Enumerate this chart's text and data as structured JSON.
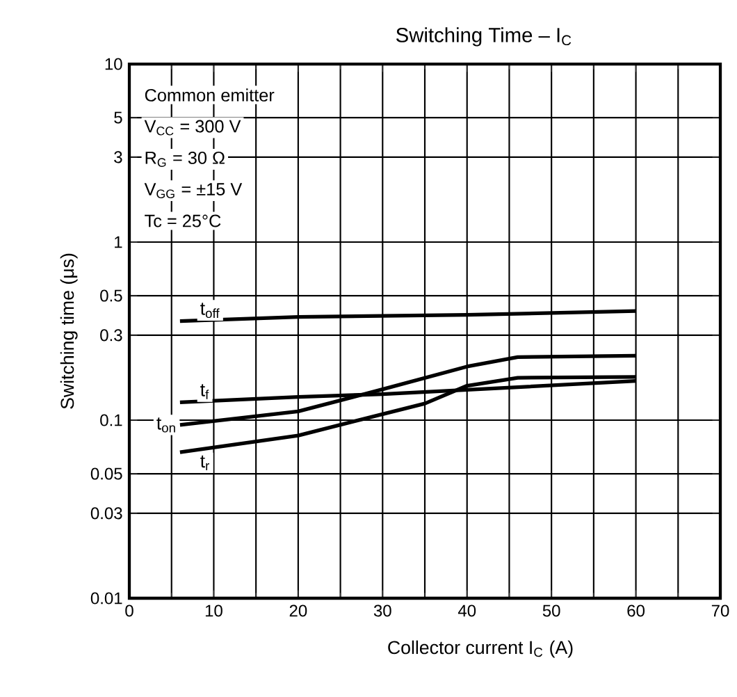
{
  "chart_data": {
    "type": "line",
    "title": "Switching Time – I$_{C}$",
    "xlabel": "Collector current   I$_{C}$   (A)",
    "ylabel": "Switching time    (μs)",
    "annotations": [
      "Common emitter",
      "V$_{CC}$ = 300 V",
      "R$_{G}$ = 30 Ω",
      "V$_{GG}$ = ±15 V",
      "Tc = 25°C"
    ],
    "series": [
      {
        "name": "t$_{off}$",
        "color": "#000000",
        "x": [
          6,
          20,
          40,
          60
        ],
        "values": [
          0.36,
          0.38,
          0.39,
          0.41
        ]
      },
      {
        "name": "t$_{f}$",
        "color": "#000000",
        "x": [
          6,
          20,
          30,
          40,
          60
        ],
        "values": [
          0.126,
          0.135,
          0.14,
          0.148,
          0.166
        ]
      },
      {
        "name": "t$_{on}$",
        "color": "#000000",
        "x": [
          6,
          20,
          30,
          40,
          46,
          60
        ],
        "values": [
          0.094,
          0.112,
          0.149,
          0.2,
          0.226,
          0.23
        ]
      },
      {
        "name": "t$_{r}$",
        "color": "#000000",
        "x": [
          6,
          20,
          30,
          35,
          40,
          46,
          60
        ],
        "values": [
          0.066,
          0.082,
          0.108,
          0.124,
          0.156,
          0.173,
          0.175
        ]
      }
    ],
    "xlim": [
      0,
      70
    ],
    "xticks": [
      0,
      10,
      20,
      30,
      40,
      50,
      60,
      70
    ],
    "ylim": [
      0.01,
      10
    ],
    "yticks": [
      0.01,
      0.03,
      0.05,
      0.1,
      0.3,
      0.5,
      1,
      3,
      5,
      10
    ],
    "log": "y",
    "grid": true,
    "marker": "none",
    "line_style": "solid"
  }
}
